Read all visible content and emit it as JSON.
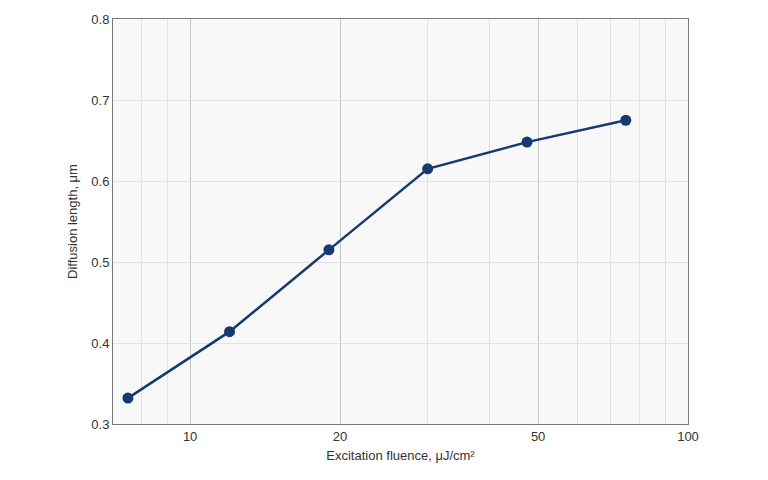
{
  "chart_data": {
    "type": "line",
    "x_label": "Excitation fluence, μJ/cm²",
    "y_label": "Diffusion length, μm",
    "x": [
      7.5,
      12,
      19,
      30,
      47.5,
      75
    ],
    "values": [
      0.332,
      0.414,
      0.515,
      0.615,
      0.648,
      0.675
    ],
    "color": "#163a70",
    "marker": "circle",
    "line_style": "solid",
    "xlim": [
      7,
      100
    ],
    "xticks": [
      10,
      20,
      50,
      100
    ],
    "ylim": [
      0.3,
      0.8
    ],
    "yticks": [
      0.3,
      0.4,
      0.5,
      0.6,
      0.7,
      0.8
    ],
    "log": "x",
    "grid": true
  }
}
